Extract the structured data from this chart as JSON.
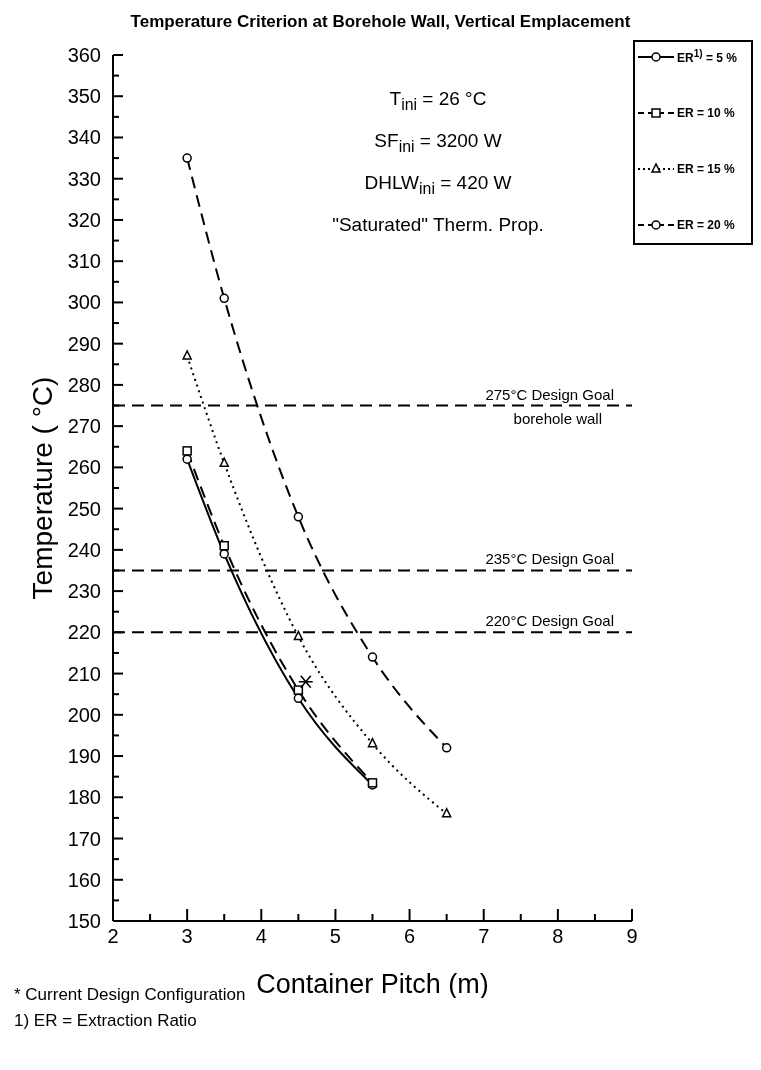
{
  "chart_data": {
    "type": "line",
    "title": "Temperature Criterion at Borehole Wall, Vertical Emplacement",
    "xlabel": "Container Pitch (m)",
    "ylabel": "Temperature ( °C)",
    "xlim": [
      2,
      9
    ],
    "xticks": [
      2,
      {
        "value": 2.5,
        "label": null
      },
      3,
      {
        "value": 3.5,
        "label": null
      },
      4,
      {
        "value": 4.5,
        "label": null
      },
      5,
      {
        "value": 5.5,
        "label": null
      },
      6,
      {
        "value": 6.5,
        "label": null
      },
      7,
      {
        "value": 7.5,
        "label": null
      },
      8,
      {
        "value": 8.5,
        "label": null
      },
      9
    ],
    "ylim": [
      150,
      360
    ],
    "yticks": [
      150,
      {
        "value": 155,
        "label": null
      },
      160,
      {
        "value": 165,
        "label": null
      },
      170,
      {
        "value": 175,
        "label": null
      },
      180,
      {
        "value": 185,
        "label": null
      },
      190,
      {
        "value": 195,
        "label": null
      },
      200,
      {
        "value": 205,
        "label": null
      },
      210,
      {
        "value": 215,
        "label": null
      },
      220,
      {
        "value": 225,
        "label": null
      },
      230,
      {
        "value": 235,
        "label": null
      },
      240,
      {
        "value": 245,
        "label": null
      },
      250,
      {
        "value": 255,
        "label": null
      },
      260,
      {
        "value": 265,
        "label": null
      },
      270,
      {
        "value": 275,
        "label": null
      },
      280,
      {
        "value": 285,
        "label": null
      },
      290,
      {
        "value": 295,
        "label": null
      },
      300,
      {
        "value": 305,
        "label": null
      },
      310,
      {
        "value": 315,
        "label": null
      },
      320,
      {
        "value": 325,
        "label": null
      },
      330,
      {
        "value": 335,
        "label": null
      },
      340,
      {
        "value": 345,
        "label": null
      },
      350,
      {
        "value": 355,
        "label": null
      },
      360
    ],
    "grid": false,
    "legend": "top right",
    "series": [
      {
        "name": "ER$^{1)}$ = 5 %",
        "color": "#000000",
        "line_style": "solid",
        "marker": "circle",
        "x": [
          3,
          3.5,
          4.5,
          5.5
        ],
        "values": [
          262,
          239,
          204,
          183
        ]
      },
      {
        "name": "ER = 10 %",
        "color": "#000000",
        "line_style": "dashed",
        "marker": "square",
        "x": [
          3,
          3.5,
          4.5,
          5.5
        ],
        "values": [
          264,
          241,
          206,
          183.5
        ]
      },
      {
        "name": "ER = 15 %",
        "color": "#000000",
        "line_style": "dotted",
        "marker": "triangle",
        "x": [
          3,
          3.5,
          4.5,
          5.5,
          6.5
        ],
        "values": [
          287,
          261,
          219,
          193,
          176
        ]
      },
      {
        "name": "ER = 20 %",
        "color": "#000000",
        "line_style": "dashed",
        "marker": "circle",
        "x": [
          3,
          3.5,
          4.5,
          5.5,
          6.5
        ],
        "values": [
          335,
          301,
          248,
          214,
          192
        ]
      },
      {
        "type": "scatter",
        "color": "#000000",
        "marker": "cross",
        "x": [
          4.6
        ],
        "values": [
          208
        ]
      }
    ],
    "ref_lines": [
      {
        "axis": "y",
        "value": 275,
        "label": "275°C Design Goal\nborehole wall",
        "color": "#000000",
        "line_style": "dashed"
      },
      {
        "axis": "y",
        "value": 235,
        "label": "235°C Design Goal",
        "color": "#000000",
        "line_style": "dashed"
      },
      {
        "axis": "y",
        "value": 220,
        "label": "220°C Design Goal",
        "color": "#000000",
        "line_style": "dashed"
      }
    ],
    "annotations": [
      "T$_{ini}$ = 26 °C",
      "SF$_{ini}$ = 3200 W",
      "DHLW$_{ini}$ = 420 W",
      "\"Saturated\" Therm. Prop.",
      "* Current Design Configuration",
      "1) ER = Extraction Ratio"
    ]
  }
}
